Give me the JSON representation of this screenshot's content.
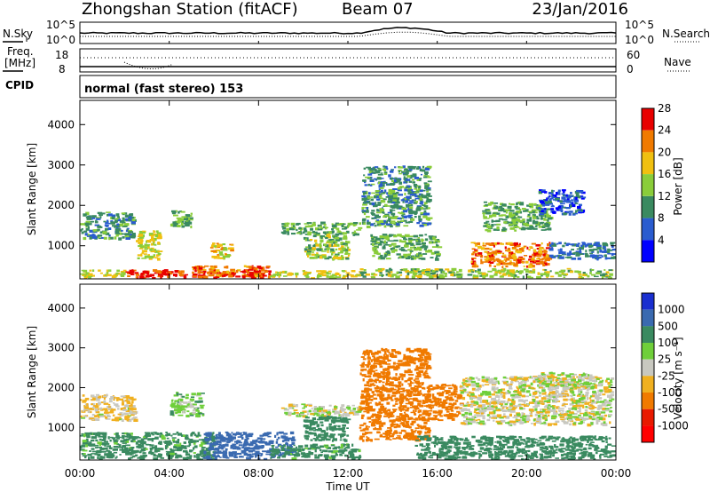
{
  "header": {
    "station": "Zhongshan Station (fitACF)",
    "beam": "Beam 07",
    "date": "23/Jan/2016"
  },
  "status_panels": {
    "nsky_label": "N.Sky",
    "nsearch_label": "N.Search",
    "noise_ticks": [
      "10^5",
      "10^0"
    ],
    "freq_label_1": "Freq.",
    "freq_label_2": "[MHz]",
    "freq_ticks": [
      "18",
      "8"
    ],
    "nave_label": "Nave",
    "nave_ticks": [
      "60",
      "0"
    ],
    "cpid_label": "CPID",
    "cpid_text": "normal (fast stereo) 153"
  },
  "power_colorbar": {
    "title": "Power [dB]",
    "levels": [
      "4",
      "8",
      "12",
      "16",
      "20",
      "24",
      "28"
    ],
    "colors": [
      "#0000ff",
      "#2a5ccf",
      "#3a8a60",
      "#8acd3a",
      "#f0c010",
      "#f07a00",
      "#e80000"
    ]
  },
  "velocity_colorbar": {
    "title": "Velocity [m s⁻¹]",
    "levels": [
      "1000",
      "500",
      "100",
      "25",
      "-25",
      "-100",
      "-500",
      "-1000"
    ],
    "colors": [
      "#1a2fd0",
      "#3a6ab0",
      "#3a8a60",
      "#6fcf3a",
      "#c8c8c0",
      "#f0b020",
      "#f07a00",
      "#e81a00",
      "#ff0000"
    ]
  },
  "chart_data": [
    {
      "type": "heatmap",
      "panel": "power",
      "ylabel": "Slant Range [km]",
      "xlabel": "Time UT",
      "x_ticks": [
        "00:00",
        "04:00",
        "08:00",
        "12:00",
        "16:00",
        "20:00",
        "00:00"
      ],
      "y_ticks": [
        1000,
        2000,
        3000,
        4000
      ],
      "ylim": [
        180,
        4600
      ],
      "xlim_hours": [
        0,
        24
      ],
      "patches": [
        {
          "t0": 0.0,
          "t1": 2.4,
          "r0": 1200,
          "r1": 1850,
          "v": 10
        },
        {
          "t0": 0.0,
          "t1": 2.0,
          "r0": 200,
          "r1": 420,
          "v": 16
        },
        {
          "t0": 2.0,
          "t1": 8.5,
          "r0": 200,
          "r1": 420,
          "v": 26
        },
        {
          "t0": 5.0,
          "t1": 8.5,
          "r0": 250,
          "r1": 520,
          "v": 22
        },
        {
          "t0": 2.5,
          "t1": 3.5,
          "r0": 700,
          "r1": 1400,
          "v": 16
        },
        {
          "t0": 4.0,
          "t1": 5.0,
          "r0": 1500,
          "r1": 1900,
          "v": 12
        },
        {
          "t0": 5.8,
          "t1": 6.8,
          "r0": 700,
          "r1": 1100,
          "v": 18
        },
        {
          "t0": 8.5,
          "t1": 12.5,
          "r0": 200,
          "r1": 400,
          "v": 16
        },
        {
          "t0": 9.0,
          "t1": 12.5,
          "r0": 1300,
          "r1": 1600,
          "v": 12
        },
        {
          "t0": 10.0,
          "t1": 12.0,
          "r0": 700,
          "r1": 1300,
          "v": 14
        },
        {
          "t0": 12.6,
          "t1": 15.6,
          "r0": 1500,
          "r1": 3000,
          "v": 10
        },
        {
          "t0": 13.0,
          "t1": 16.0,
          "r0": 700,
          "r1": 1300,
          "v": 12
        },
        {
          "t0": 12.5,
          "t1": 23.8,
          "r0": 200,
          "r1": 450,
          "v": 14
        },
        {
          "t0": 17.5,
          "t1": 21.0,
          "r0": 500,
          "r1": 1100,
          "v": 22
        },
        {
          "t0": 18.0,
          "t1": 21.0,
          "r0": 1400,
          "r1": 2100,
          "v": 12
        },
        {
          "t0": 21.0,
          "t1": 24.0,
          "r0": 700,
          "r1": 1100,
          "v": 8
        },
        {
          "t0": 20.5,
          "t1": 22.5,
          "r0": 1800,
          "r1": 2400,
          "v": 6
        }
      ]
    },
    {
      "type": "heatmap",
      "panel": "velocity",
      "ylabel": "Slant Range [km]",
      "xlabel": "Time UT",
      "x_ticks": [
        "00:00",
        "04:00",
        "08:00",
        "12:00",
        "16:00",
        "20:00",
        "00:00"
      ],
      "y_ticks": [
        1000,
        2000,
        3000,
        4000
      ],
      "ylim": [
        180,
        4600
      ],
      "xlim_hours": [
        0,
        24
      ],
      "patches": [
        {
          "t0": 0.0,
          "t1": 2.4,
          "r0": 1200,
          "r1": 1850,
          "v": -30
        },
        {
          "t0": 0.0,
          "t1": 6.0,
          "r0": 200,
          "r1": 900,
          "v": 150
        },
        {
          "t0": 4.0,
          "t1": 5.5,
          "r0": 1300,
          "r1": 1900,
          "v": 60
        },
        {
          "t0": 5.5,
          "t1": 9.5,
          "r0": 200,
          "r1": 900,
          "v": 800
        },
        {
          "t0": 8.5,
          "t1": 12.5,
          "r0": 200,
          "r1": 600,
          "v": 150
        },
        {
          "t0": 9.0,
          "t1": 12.5,
          "r0": 1300,
          "r1": 1600,
          "v": 10
        },
        {
          "t0": 10.0,
          "t1": 12.0,
          "r0": 700,
          "r1": 1300,
          "v": 200
        },
        {
          "t0": 12.5,
          "t1": 15.6,
          "r0": 700,
          "r1": 3000,
          "v": -200
        },
        {
          "t0": 15.5,
          "t1": 17.0,
          "r0": 1200,
          "r1": 2100,
          "v": -300
        },
        {
          "t0": 15.0,
          "t1": 24.0,
          "r0": 200,
          "r1": 800,
          "v": 200
        },
        {
          "t0": 17.0,
          "t1": 23.8,
          "r0": 1100,
          "r1": 2300,
          "v": 0
        },
        {
          "t0": 20.5,
          "t1": 23.0,
          "r0": 2000,
          "r1": 2400,
          "v": 0
        }
      ]
    }
  ]
}
